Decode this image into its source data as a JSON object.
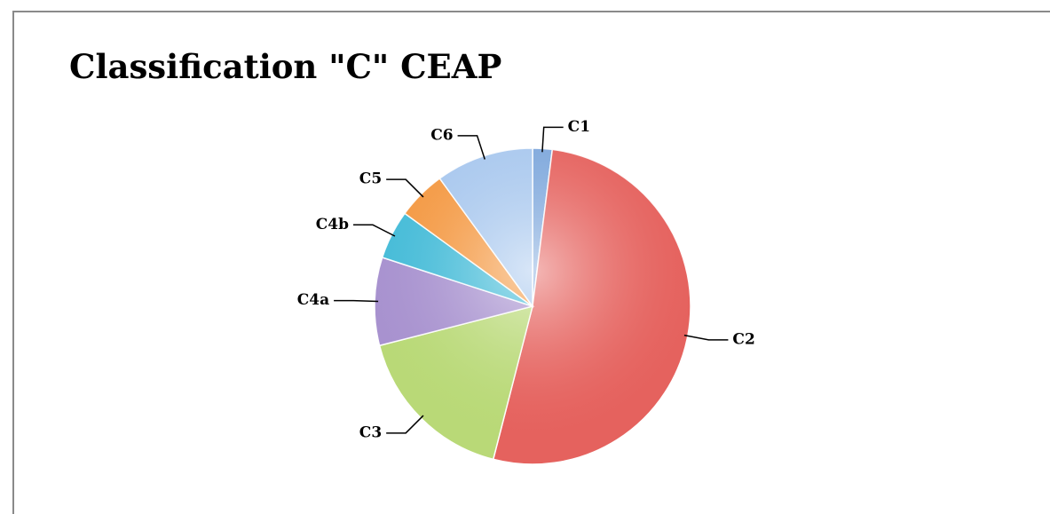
{
  "chart_data": {
    "type": "pie",
    "title": "Classification \"C\" CEAP",
    "categories": [
      "C1",
      "C2",
      "C3",
      "C4a",
      "C4b",
      "C5",
      "C6"
    ],
    "values": [
      2,
      52,
      17,
      9,
      5,
      5,
      10
    ],
    "colors": [
      "#7fa8dc",
      "#e5625e",
      "#b9d977",
      "#a892cf",
      "#47bcd8",
      "#f49a45",
      "#a9c8ee"
    ]
  }
}
